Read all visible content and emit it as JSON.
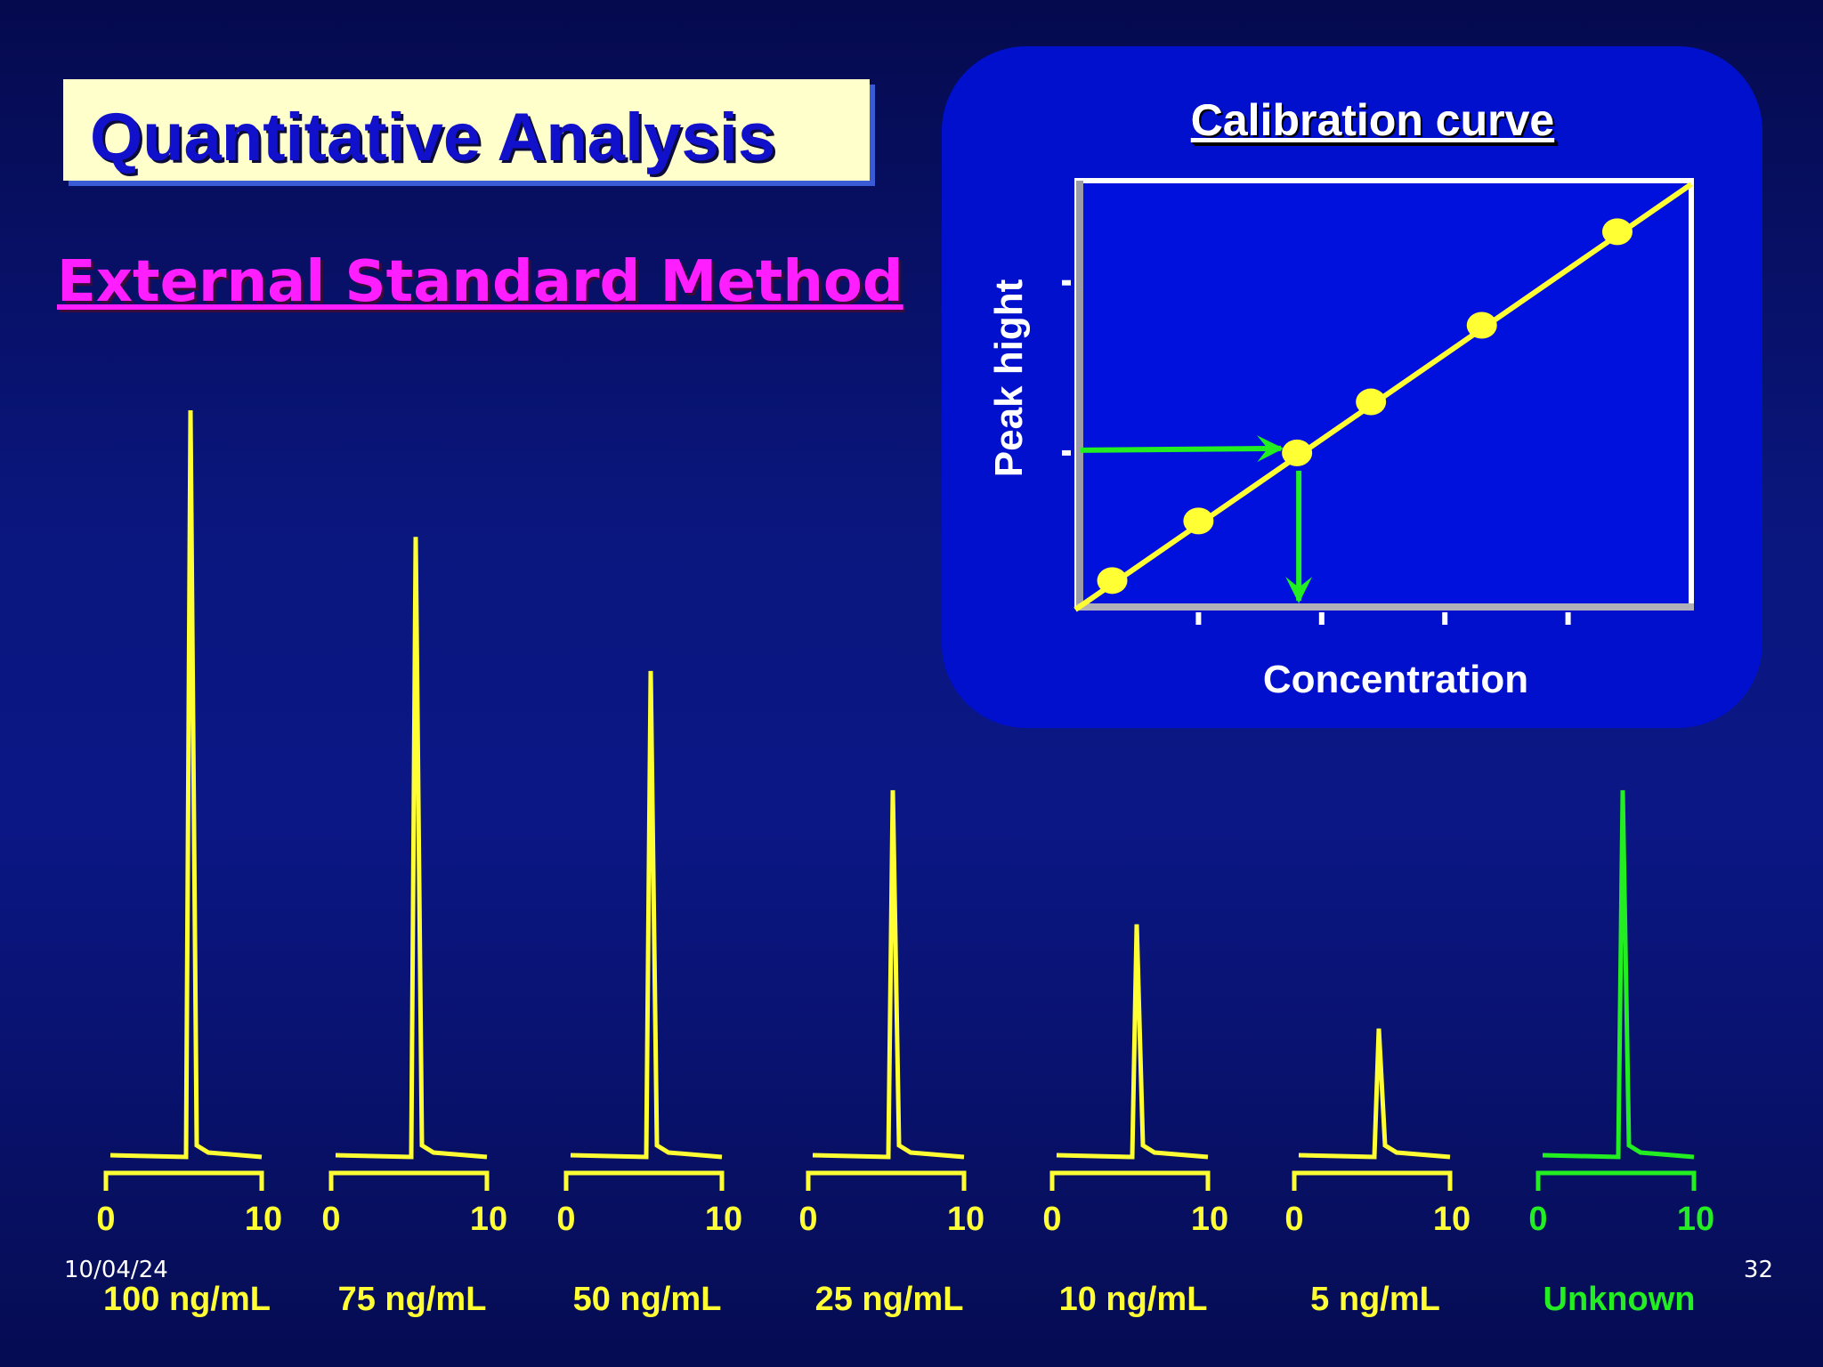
{
  "slide": {
    "title": "Quantitative Analysis",
    "subtitle": "External Standard Method",
    "date": "10/04/24",
    "page": "32"
  },
  "colors": {
    "standard": "#ffff33",
    "unknown": "#22ee22",
    "panel": "#0010cc",
    "axis_text": "#ffffff"
  },
  "chart_data": [
    {
      "type": "line",
      "title": "Calibration curve",
      "xlabel": "Concentration",
      "ylabel": "Peak hight",
      "points": [
        {
          "x": 0.3,
          "y": 0.3
        },
        {
          "x": 1.0,
          "y": 1.0
        },
        {
          "x": 1.8,
          "y": 1.8
        },
        {
          "x": 2.4,
          "y": 2.4
        },
        {
          "x": 3.3,
          "y": 3.3
        },
        {
          "x": 4.4,
          "y": 4.4
        }
      ],
      "fit_line": {
        "x": [
          0,
          5
        ],
        "y": [
          0,
          5
        ]
      },
      "unknown_lookup": {
        "x": 1.8,
        "y": 1.8
      },
      "xlim": [
        0,
        5
      ],
      "ylim": [
        0,
        5
      ],
      "x_ticks": [
        1,
        2,
        3,
        4
      ],
      "y_ticks": [
        1.8,
        3.8
      ],
      "grid": false
    },
    {
      "type": "line",
      "subtype": "chromatograms",
      "x_range": [
        0,
        10
      ],
      "tick_labels": [
        "0",
        "10"
      ],
      "peak_time": 5,
      "series": [
        {
          "name": "100 ng/mL",
          "peak_height": 100,
          "unknown": false
        },
        {
          "name": "75 ng/mL",
          "peak_height": 83,
          "unknown": false
        },
        {
          "name": "50 ng/mL",
          "peak_height": 65,
          "unknown": false
        },
        {
          "name": "25 ng/mL",
          "peak_height": 49,
          "unknown": false
        },
        {
          "name": "10 ng/mL",
          "peak_height": 31,
          "unknown": false
        },
        {
          "name": "5 ng/mL",
          "peak_height": 17,
          "unknown": false
        },
        {
          "name": "Unknown",
          "peak_height": 49,
          "unknown": true
        }
      ]
    }
  ]
}
